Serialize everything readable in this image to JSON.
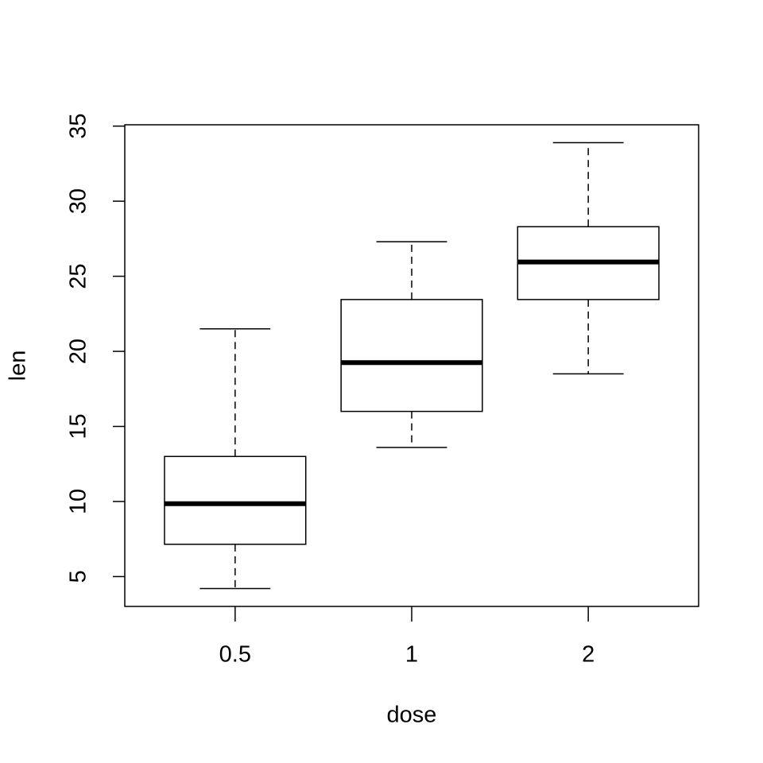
{
  "chart_data": {
    "type": "box",
    "xlabel": "dose",
    "ylabel": "len",
    "categories": [
      "0.5",
      "1",
      "2"
    ],
    "min": [
      4.2,
      13.6,
      18.5
    ],
    "q1": [
      7.15,
      16.0,
      23.45
    ],
    "median": [
      9.85,
      19.25,
      25.95
    ],
    "q3": [
      13.0,
      23.45,
      28.3
    ],
    "max": [
      21.5,
      27.3,
      33.9
    ],
    "color": "#000000",
    "ylim": [
      3.012,
      35.088
    ],
    "yticks": [
      5,
      10,
      15,
      20,
      25,
      30,
      35
    ]
  }
}
